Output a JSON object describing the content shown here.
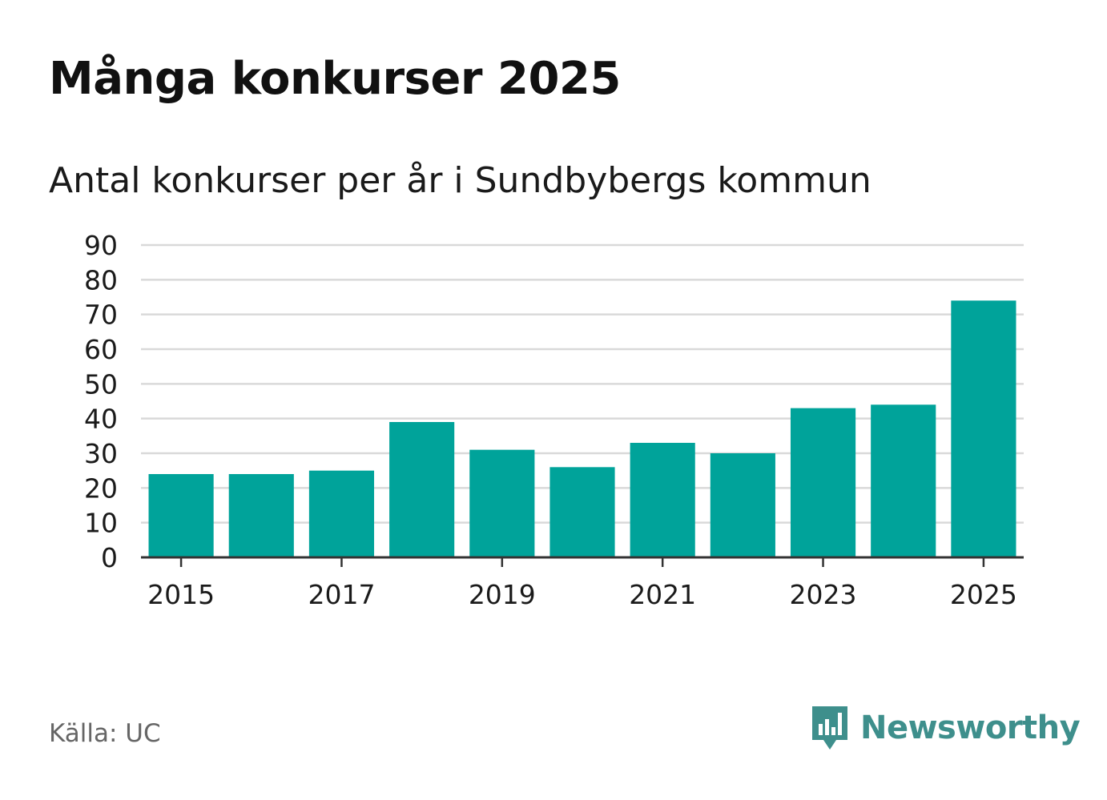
{
  "header": {
    "title": "Många konkurser 2025",
    "subtitle": "Antal konkurser per år i Sundbybergs kommun"
  },
  "footer": {
    "source": "Källa: UC",
    "brand": "Newsworthy"
  },
  "colors": {
    "bar": "#00a39a",
    "grid": "#d9d9d9",
    "axis": "#333333",
    "text": "#1a1a1a",
    "brand": "#3e8f8c"
  },
  "chart_data": {
    "type": "bar",
    "title": "Antal konkurser per år i Sundbybergs kommun",
    "xlabel": "",
    "ylabel": "",
    "categories": [
      "2015",
      "2016",
      "2017",
      "2018",
      "2019",
      "2020",
      "2021",
      "2022",
      "2023",
      "2024",
      "2025"
    ],
    "values": [
      24,
      24,
      25,
      39,
      31,
      26,
      33,
      30,
      43,
      44,
      74
    ],
    "x_tick_labels": [
      "2015",
      "2017",
      "2019",
      "2021",
      "2023",
      "2025"
    ],
    "y_ticks": [
      0,
      10,
      20,
      30,
      40,
      50,
      60,
      70,
      80,
      90
    ],
    "ylim": [
      0,
      90
    ],
    "grid": true,
    "legend": "none"
  }
}
